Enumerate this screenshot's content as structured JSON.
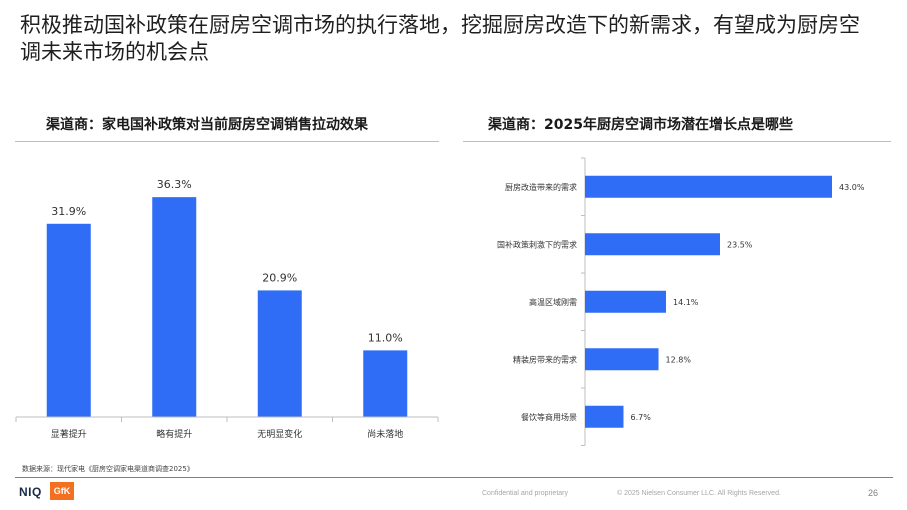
{
  "title": "积极推动国补政策在厨房空调市场的执行落地，挖掘厨房改造下的新需求，有望成为厨房空调未来市场的机会点",
  "chart_data": [
    {
      "type": "bar",
      "title": "渠道商：家电国补政策对当前厨房空调销售拉动效果",
      "categories": [
        "显著提升",
        "略有提升",
        "无明显变化",
        "尚未落地"
      ],
      "values": [
        31.9,
        36.3,
        20.9,
        11.0
      ],
      "value_labels": [
        "31.9%",
        "36.3%",
        "20.9%",
        "11.0%"
      ],
      "ylim": [
        0,
        40
      ],
      "grid": false,
      "color": "#2f6df6"
    },
    {
      "type": "bar",
      "orientation": "horizontal",
      "title": "渠道商：2025年厨房空调市场潜在增长点是哪些",
      "categories": [
        "厨房改造带来的需求",
        "国补政策刺激下的需求",
        "高温区域刚需",
        "精装房带来的需求",
        "餐饮等商用场景"
      ],
      "values": [
        43.0,
        23.5,
        14.1,
        12.8,
        6.7
      ],
      "value_labels": [
        "43.0%",
        "23.5%",
        "14.1%",
        "12.8%",
        "6.7%"
      ],
      "xlim": [
        0,
        43
      ],
      "grid": false,
      "color": "#2f6df6"
    }
  ],
  "source": "数据来源：现代家电《厨房空调家电渠道商调查2025》",
  "footer": {
    "logo_niq": "NIQ",
    "logo_gfk": "GfK",
    "confidential": "Confidential and proprietary",
    "copyright": "© 2025 Nielsen Consumer LLC. All Rights Reserved.",
    "page": "26"
  }
}
